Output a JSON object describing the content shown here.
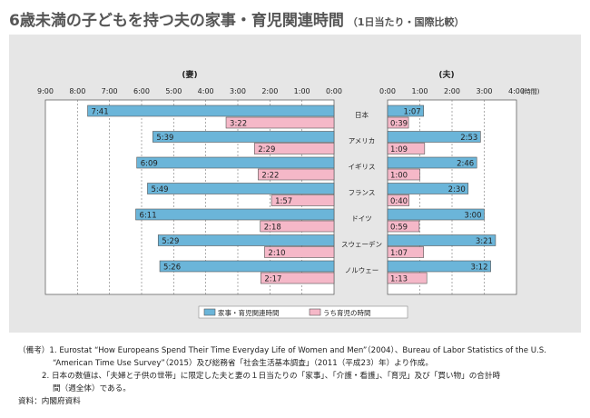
{
  "title": "6歳未満の子どもを持つ夫の家事・育児関連時間",
  "subtitle": "（1日当たり・国際比較）",
  "chart_data": {
    "type": "bar",
    "orientation": "horizontal",
    "left_panel_title": "(妻)",
    "right_panel_title": "(夫)",
    "left_ticks": [
      "9:00",
      "8:00",
      "7:00",
      "6:00",
      "5:00",
      "4:00",
      "3:00",
      "2:00",
      "1:00",
      "0:00"
    ],
    "right_ticks": [
      "0:00",
      "1:00",
      "2:00",
      "3:00",
      "4:00"
    ],
    "right_unit": "(時間)",
    "xlim_left": [
      0,
      9
    ],
    "xlim_right": [
      0,
      4
    ],
    "categories": [
      "日本",
      "アメリカ",
      "イギリス",
      "フランス",
      "ドイツ",
      "スウェーデン",
      "ノルウェー"
    ],
    "series": [
      {
        "name": "家事・育児関連時間",
        "color": "#6bb5d9",
        "wife_values": [
          7.683,
          5.65,
          6.15,
          5.817,
          6.183,
          5.483,
          5.433
        ],
        "wife_labels": [
          "7:41",
          "5:39",
          "6:09",
          "5:49",
          "6:11",
          "5:29",
          "5:26"
        ],
        "husband_values": [
          1.117,
          2.883,
          2.767,
          2.5,
          3.0,
          3.35,
          3.2
        ],
        "husband_labels": [
          "1:07",
          "2:53",
          "2:46",
          "2:30",
          "3:00",
          "3:21",
          "3:12"
        ]
      },
      {
        "name": "うち育児の時間",
        "color": "#f5b8c8",
        "wife_values": [
          3.367,
          2.483,
          2.367,
          1.95,
          2.3,
          2.167,
          2.283
        ],
        "wife_labels": [
          "3:22",
          "2:29",
          "2:22",
          "1:57",
          "2:18",
          "2:10",
          "2:17"
        ],
        "husband_values": [
          0.65,
          1.15,
          1.0,
          0.667,
          0.983,
          1.117,
          1.217
        ],
        "husband_labels": [
          "0:39",
          "1:09",
          "1:00",
          "0:40",
          "0:59",
          "1:07",
          "1:13"
        ]
      }
    ],
    "legend_position": "bottom",
    "grid": true
  },
  "notes": {
    "n1_label": "（備考）1.",
    "n1_line1": "Eurostat “How Europeans Spend Their Time Everyday Life of Women and Men”（2004）、Bureau of Labor Statistics of the U.S.",
    "n1_line2": "“American Time Use Survey”（2015）及び総務省「社会生活基本調査」（2011（平成23）年）より作成。",
    "n2_label": "2.",
    "n2_line1": "日本の数値は、「夫婦と子供の世帯」に限定した夫と妻の１日当たりの「家事」、「介護・看護」、「育児」及び「買い物」の合計時",
    "n2_line2": "間（週全体）である。",
    "source": "資料：内閣府資料"
  }
}
